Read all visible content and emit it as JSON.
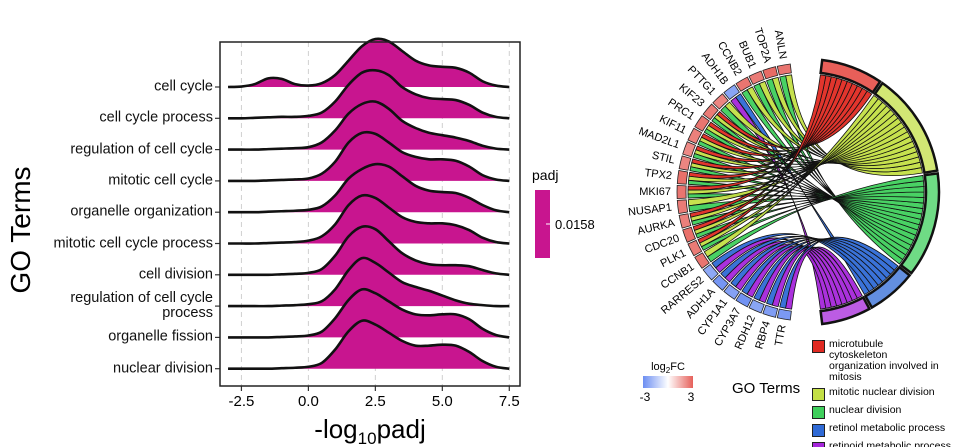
{
  "chart_data": [
    {
      "type": "ridgeline",
      "y_label": "GO Terms",
      "x_label": [
        "-log",
        "10",
        "padj"
      ],
      "categories": [
        "cell cycle",
        "cell cycle process",
        "regulation of cell cycle",
        "mitotic cell cycle",
        "organelle organization",
        "mitotic cell cycle process",
        "cell division",
        "regulation of cell cycle process",
        "organelle fission",
        "nuclear division"
      ],
      "x": [
        -3,
        -2.5,
        -2,
        -1.5,
        -1,
        -0.5,
        0,
        0.5,
        1,
        1.5,
        2,
        2.5,
        3,
        3.5,
        4,
        4.5,
        5,
        5.5,
        6,
        6.5,
        7,
        7.5
      ],
      "density": [
        [
          0,
          0.01,
          0.06,
          0.18,
          0.17,
          0.06,
          0.03,
          0.08,
          0.25,
          0.55,
          0.85,
          1.0,
          0.95,
          0.75,
          0.55,
          0.45,
          0.42,
          0.4,
          0.3,
          0.12,
          0.03,
          0
        ],
        [
          0,
          0,
          0.01,
          0.02,
          0.03,
          0.03,
          0.05,
          0.12,
          0.35,
          0.7,
          0.95,
          1.0,
          0.9,
          0.65,
          0.5,
          0.42,
          0.4,
          0.38,
          0.28,
          0.12,
          0.03,
          0
        ],
        [
          0,
          0,
          0,
          0.01,
          0.02,
          0.03,
          0.05,
          0.15,
          0.4,
          0.75,
          0.95,
          1.0,
          0.85,
          0.6,
          0.45,
          0.35,
          0.3,
          0.25,
          0.18,
          0.08,
          0.02,
          0
        ],
        [
          0,
          0,
          0,
          0.01,
          0.02,
          0.03,
          0.05,
          0.15,
          0.4,
          0.8,
          1.0,
          0.98,
          0.8,
          0.6,
          0.5,
          0.45,
          0.45,
          0.42,
          0.3,
          0.12,
          0.03,
          0
        ],
        [
          0,
          0,
          0,
          0.01,
          0.02,
          0.03,
          0.05,
          0.12,
          0.35,
          0.7,
          0.9,
          1.0,
          0.95,
          0.75,
          0.55,
          0.45,
          0.42,
          0.4,
          0.3,
          0.15,
          0.04,
          0
        ],
        [
          0,
          0,
          0,
          0.01,
          0.02,
          0.03,
          0.06,
          0.15,
          0.4,
          0.8,
          1.0,
          0.95,
          0.75,
          0.55,
          0.45,
          0.42,
          0.42,
          0.38,
          0.28,
          0.12,
          0.03,
          0
        ],
        [
          0,
          0,
          0,
          0,
          0.01,
          0.02,
          0.04,
          0.12,
          0.4,
          0.8,
          1.0,
          0.95,
          0.7,
          0.45,
          0.3,
          0.22,
          0.2,
          0.2,
          0.18,
          0.1,
          0.03,
          0
        ],
        [
          0,
          0,
          0,
          0,
          0.01,
          0.02,
          0.04,
          0.1,
          0.35,
          0.75,
          1.0,
          0.9,
          0.7,
          0.5,
          0.4,
          0.32,
          0.22,
          0.12,
          0.05,
          0.02,
          0,
          0
        ],
        [
          0,
          0,
          0,
          0,
          0.01,
          0.02,
          0.04,
          0.12,
          0.4,
          0.78,
          1.0,
          0.92,
          0.75,
          0.58,
          0.48,
          0.46,
          0.48,
          0.48,
          0.38,
          0.18,
          0.05,
          0
        ],
        [
          0,
          0,
          0,
          0,
          0.01,
          0.02,
          0.04,
          0.12,
          0.4,
          0.78,
          1.0,
          0.92,
          0.75,
          0.58,
          0.48,
          0.48,
          0.5,
          0.48,
          0.35,
          0.16,
          0.04,
          0
        ]
      ],
      "color": "#c8158f",
      "xlim": [
        -3.3,
        7.9
      ],
      "xticks": [
        {
          "value": -2.5,
          "label": "-2.5"
        },
        {
          "value": 0,
          "label": "0.0"
        },
        {
          "value": 2.5,
          "label": "2.5"
        },
        {
          "value": 5,
          "label": "5.0"
        },
        {
          "value": 7.5,
          "label": "7.5"
        }
      ],
      "grid": true,
      "colorbar": {
        "title": "padj",
        "ticks": [
          0.0158
        ],
        "color": "#c8158f"
      }
    },
    {
      "type": "chord",
      "genes": [
        "ANLN",
        "TOP2A",
        "BUB1",
        "CCNB2",
        "ADH1B",
        "PTTG1",
        "KIF23",
        "PRC1",
        "KIF11",
        "MAD2L1",
        "STIL",
        "TPX2",
        "MKI67",
        "NUSAP1",
        "AURKA",
        "CDC20",
        "PLK1",
        "CCNB1",
        "RARRES2",
        "ADH1A",
        "CYP1A1",
        "CYP3A7",
        "RDH12",
        "RBP4",
        "TTR"
      ],
      "logFC": [
        2.6,
        2.8,
        2.5,
        2.6,
        -2.4,
        2.3,
        2.5,
        2.6,
        2.4,
        2.2,
        2.3,
        2.7,
        2.6,
        2.5,
        2.4,
        2.7,
        2.5,
        2.6,
        -2.3,
        -2.8,
        -2.5,
        -2.9,
        -2.4,
        -2.6,
        -2.7
      ],
      "gene_terms": [
        [
          1,
          2
        ],
        [
          1,
          2
        ],
        [
          1,
          2
        ],
        [
          1,
          2
        ],
        [
          3,
          4
        ],
        [
          1,
          2
        ],
        [
          0,
          1,
          2
        ],
        [
          0,
          1,
          2
        ],
        [
          0,
          1,
          2
        ],
        [
          0,
          1,
          2
        ],
        [
          0,
          1,
          2
        ],
        [
          0,
          1,
          2
        ],
        [
          0,
          1,
          2
        ],
        [
          1,
          2
        ],
        [
          0,
          1,
          2
        ],
        [
          0,
          1,
          2
        ],
        [
          0,
          1,
          2
        ],
        [
          1,
          2
        ],
        [
          3,
          4
        ],
        [
          3,
          4
        ],
        [
          3,
          4
        ],
        [
          3,
          4
        ],
        [
          3,
          4
        ],
        [
          3,
          4
        ],
        [
          3,
          4
        ]
      ],
      "terms": [
        {
          "name": "microtubule cytoskeleton organization involved in mitosis",
          "color": "#e02a22"
        },
        {
          "name": "mitotic nuclear division",
          "color": "#c3df45"
        },
        {
          "name": "nuclear division",
          "color": "#3fcf5c"
        },
        {
          "name": "retinol metabolic process",
          "color": "#2f6ad6"
        },
        {
          "name": "retinoid metabolic process",
          "color": "#a526da"
        }
      ],
      "legend_title": "GO Terms",
      "logfc_legend": {
        "title": [
          "log",
          "2",
          "FC"
        ],
        "ticks": [
          -3,
          3
        ],
        "colors": [
          "#6c8ef2",
          "#ffffff",
          "#e6605a"
        ]
      }
    }
  ]
}
